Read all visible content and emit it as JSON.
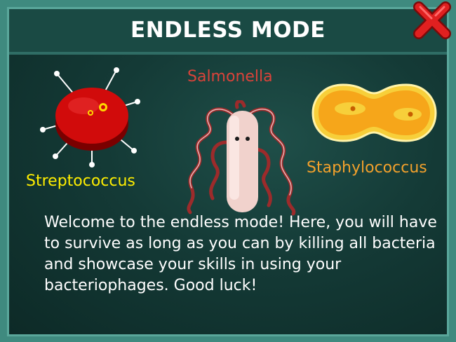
{
  "dialog": {
    "title": "ENDLESS MODE",
    "description": "Welcome to the endless mode! Here, you will have to survive as long as you can by killing all bacteria and showcase your skills in using your bacteriophages. Good luck!"
  },
  "bacteria": {
    "salmonella": "Salmonella",
    "streptococcus": "Streptococcus",
    "staphylococcus": "Staphylococcus"
  },
  "colors": {
    "salmonella_label": "#d9433a",
    "streptococcus_label": "#ffee00",
    "staphylococcus_label": "#f3a12c",
    "close_icon": "#e02020"
  },
  "icons": {
    "close": "close-icon"
  }
}
